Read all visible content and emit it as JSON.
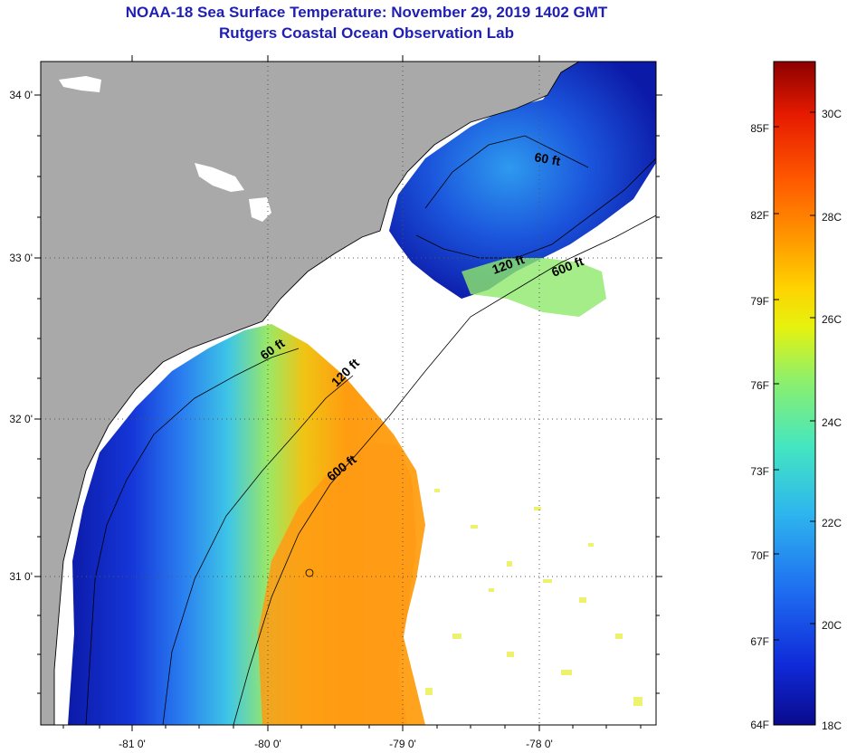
{
  "title": {
    "line1": "NOAA-18 Sea Surface Temperature:  November 29, 2019 1402 GMT",
    "line2": "Rutgers Coastal Ocean Observation Lab"
  },
  "map": {
    "lat_labels": [
      "34 0'",
      "33 0'",
      "32 0'",
      "31 0'"
    ],
    "lon_labels": [
      "-81 0'",
      "-80 0'",
      "-79 0'",
      "-78 0'"
    ],
    "isobaths": [
      {
        "label": "60 ft"
      },
      {
        "label": "120 ft"
      },
      {
        "label": "600 ft"
      },
      {
        "label": "60 ft"
      },
      {
        "label": "120 ft"
      },
      {
        "label": "600 ft"
      }
    ]
  },
  "colorbar": {
    "fahrenheit": [
      "85F",
      "82F",
      "79F",
      "76F",
      "73F",
      "70F",
      "67F",
      "64F"
    ],
    "celsius": [
      "30C",
      "28C",
      "26C",
      "24C",
      "22C",
      "20C",
      "18C"
    ],
    "colors": [
      "#0a0a8c",
      "#0f2ad8",
      "#1e6cf0",
      "#2eb6ee",
      "#44e6c0",
      "#8ef06a",
      "#e6f20e",
      "#ffd200",
      "#ff9a00",
      "#ff5a00",
      "#e61a00",
      "#8c0000"
    ]
  }
}
